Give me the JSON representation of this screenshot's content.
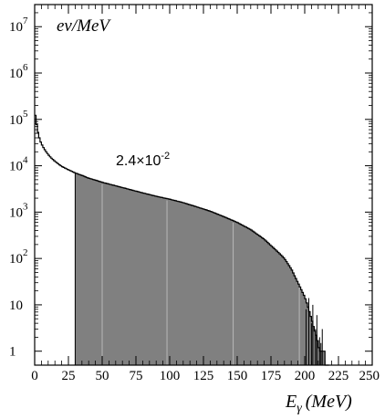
{
  "chart_data": {
    "type": "area",
    "title": "",
    "ylabel": "",
    "units_label": "ev/MeV",
    "xlabel": {
      "main": "E",
      "subscript": "γ",
      "unit": "(MeV)"
    },
    "xlim": [
      0,
      250
    ],
    "ylim": [
      0.5,
      30000000
    ],
    "y_scale": "log",
    "x_ticks": [
      "0",
      "25",
      "50",
      "75",
      "100",
      "125",
      "150",
      "175",
      "200",
      "225",
      "250"
    ],
    "y_ticks": [
      {
        "value": 1,
        "base": "1",
        "exp": ""
      },
      {
        "value": 10,
        "base": "10",
        "exp": ""
      },
      {
        "value": 100,
        "base": "10",
        "exp": "2"
      },
      {
        "value": 1000,
        "base": "10",
        "exp": "3"
      },
      {
        "value": 10000,
        "base": "10",
        "exp": "4"
      },
      {
        "value": 100000,
        "base": "10",
        "exp": "5"
      },
      {
        "value": 1000000,
        "base": "10",
        "exp": "6"
      },
      {
        "value": 10000000,
        "base": "10",
        "exp": "7"
      }
    ],
    "shaded_region": {
      "from": 30,
      "to": 215,
      "fill": "#808080"
    },
    "vertical_lines": [
      50,
      98,
      147,
      196
    ],
    "annotation": {
      "base": "2.4×10",
      "exp": "-2"
    },
    "series": [
      {
        "values": [
          [
            0,
            150000
          ],
          [
            1,
            100000
          ],
          [
            2,
            60000
          ],
          [
            4,
            35000
          ],
          [
            6,
            26000
          ],
          [
            8,
            21000
          ],
          [
            10,
            17500
          ],
          [
            12,
            15000
          ],
          [
            15,
            12500
          ],
          [
            20,
            9700
          ],
          [
            25,
            8200
          ],
          [
            30,
            7000
          ],
          [
            35,
            6200
          ],
          [
            40,
            5400
          ],
          [
            45,
            4900
          ],
          [
            50,
            4400
          ],
          [
            60,
            3700
          ],
          [
            70,
            3100
          ],
          [
            80,
            2600
          ],
          [
            90,
            2200
          ],
          [
            100,
            1900
          ],
          [
            110,
            1600
          ],
          [
            120,
            1300
          ],
          [
            130,
            1050
          ],
          [
            140,
            800
          ],
          [
            150,
            600
          ],
          [
            160,
            420
          ],
          [
            170,
            260
          ],
          [
            175,
            190
          ],
          [
            180,
            140
          ],
          [
            185,
            100
          ],
          [
            190,
            60
          ],
          [
            195,
            30
          ],
          [
            200,
            15
          ],
          [
            203,
            8
          ],
          [
            205,
            5
          ],
          [
            207,
            3
          ],
          [
            209,
            2
          ],
          [
            211,
            1
          ],
          [
            213,
            1
          ],
          [
            215,
            1
          ],
          [
            217,
            0
          ]
        ]
      }
    ]
  }
}
